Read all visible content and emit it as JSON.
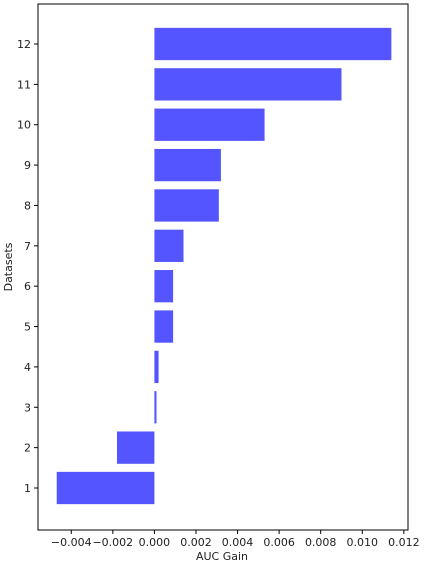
{
  "chart_data": {
    "type": "bar",
    "orientation": "horizontal",
    "title": "",
    "xlabel": "AUC Gain",
    "ylabel": "Datasets",
    "categories": [
      "1",
      "2",
      "3",
      "4",
      "5",
      "6",
      "7",
      "8",
      "9",
      "10",
      "11",
      "12"
    ],
    "values": [
      -0.0047,
      -0.0018,
      0.0001,
      0.0002,
      0.0009,
      0.0009,
      0.0014,
      0.0031,
      0.0032,
      0.0053,
      0.009,
      0.0114
    ],
    "xlim": [
      -0.0056,
      0.0122
    ],
    "xticks": [
      -0.004,
      -0.002,
      0.0,
      0.002,
      0.004,
      0.006,
      0.008,
      0.01,
      0.012
    ],
    "xtick_labels": [
      "−0.004",
      "−0.002",
      "0.000",
      "0.002",
      "0.004",
      "0.006",
      "0.008",
      "0.010",
      "0.012"
    ],
    "bar_color": "#5555ff",
    "grid": false,
    "legend": "none"
  }
}
